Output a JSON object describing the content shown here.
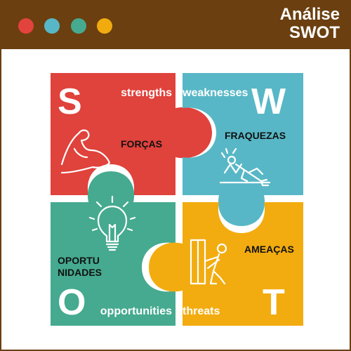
{
  "header": {
    "title_line1": "Análise",
    "title_line2": "SWOT",
    "background_color": "#6b3f10",
    "dot_colors": [
      "#e2433c",
      "#58b7c6",
      "#45aa8f",
      "#f1ab0f"
    ]
  },
  "quadrants": {
    "strengths": {
      "letter": "S",
      "english": "strengths",
      "portuguese": "FORÇAS",
      "color": "#e0423c",
      "icon": "flexed-arm-icon"
    },
    "weaknesses": {
      "letter": "W",
      "english": "weaknesses",
      "portuguese": "FRAQUEZAS",
      "color": "#58b7c6",
      "icon": "exhausted-person-icon"
    },
    "opportunities": {
      "letter": "O",
      "english": "opportunities",
      "portuguese_line1": "OPORTU",
      "portuguese_line2": "NIDADES",
      "color": "#45aa8f",
      "icon": "light-bulb-icon"
    },
    "threats": {
      "letter": "T",
      "english": "threats",
      "portuguese": "AMEAÇAS",
      "color": "#f2ac10",
      "icon": "person-pushing-wall-icon"
    }
  }
}
